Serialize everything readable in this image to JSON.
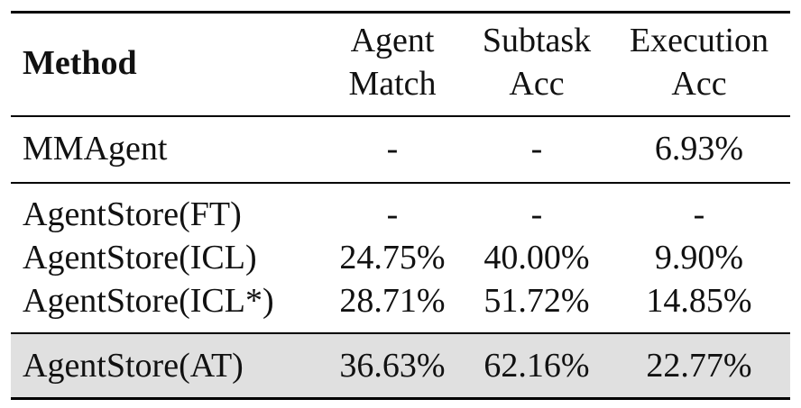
{
  "table": {
    "header": {
      "method": "Method",
      "columns": [
        [
          "Agent",
          "Match"
        ],
        [
          "Subtask",
          "Acc"
        ],
        [
          "Execution",
          "Acc"
        ]
      ]
    },
    "groups": [
      {
        "rows": [
          [
            "MMAgent",
            "-",
            "-",
            "6.93%"
          ]
        ]
      },
      {
        "rows": [
          [
            "AgentStore(FT)",
            "-",
            "-",
            "-"
          ],
          [
            "AgentStore(ICL)",
            "24.75%",
            "40.00%",
            "9.90%"
          ],
          [
            "AgentStore(ICL*)",
            "28.71%",
            "51.72%",
            "14.85%"
          ]
        ]
      },
      {
        "rows": [
          [
            "AgentStore(AT)",
            "36.63%",
            "62.16%",
            "22.77%"
          ]
        ],
        "highlight": true
      }
    ]
  }
}
